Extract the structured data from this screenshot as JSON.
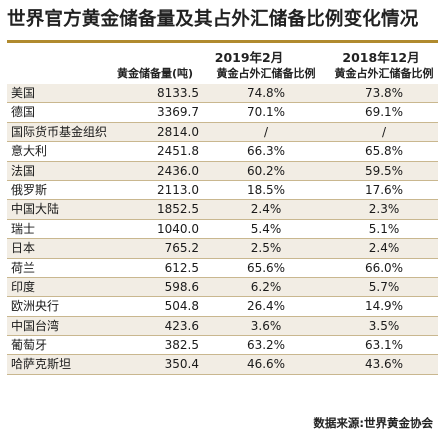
{
  "title": "世界官方黄金储备量及其占外汇储备比例变化情况",
  "periods": {
    "p2019": "2019年2月",
    "p2018": "2018年12月"
  },
  "columns": {
    "reserve": "黄金储备量(吨)",
    "pct2019": "黄金占外汇储备比例",
    "pct2018": "黄金占外汇储备比例"
  },
  "rows": [
    {
      "country": "美国",
      "reserve": "8133.5",
      "pct2019": "74.8%",
      "pct2018": "73.8%"
    },
    {
      "country": "德国",
      "reserve": "3369.7",
      "pct2019": "70.1%",
      "pct2018": "69.1%"
    },
    {
      "country": "国际货币基金组织",
      "reserve": "2814.0",
      "pct2019": "/",
      "pct2018": "/"
    },
    {
      "country": "意大利",
      "reserve": "2451.8",
      "pct2019": "66.3%",
      "pct2018": "65.8%"
    },
    {
      "country": "法国",
      "reserve": "2436.0",
      "pct2019": "60.2%",
      "pct2018": "59.5%"
    },
    {
      "country": "俄罗斯",
      "reserve": "2113.0",
      "pct2019": "18.5%",
      "pct2018": "17.6%"
    },
    {
      "country": "中国大陆",
      "reserve": "1852.5",
      "pct2019": "2.4%",
      "pct2018": "2.3%"
    },
    {
      "country": "瑞士",
      "reserve": "1040.0",
      "pct2019": "5.4%",
      "pct2018": "5.1%"
    },
    {
      "country": "日本",
      "reserve": "765.2",
      "pct2019": "2.5%",
      "pct2018": "2.4%"
    },
    {
      "country": "荷兰",
      "reserve": "612.5",
      "pct2019": "65.6%",
      "pct2018": "66.0%"
    },
    {
      "country": "印度",
      "reserve": "598.6",
      "pct2019": "6.2%",
      "pct2018": "5.7%"
    },
    {
      "country": "欧洲央行",
      "reserve": "504.8",
      "pct2019": "26.4%",
      "pct2018": "14.9%"
    },
    {
      "country": "中国台湾",
      "reserve": "423.6",
      "pct2019": "3.6%",
      "pct2018": "3.5%"
    },
    {
      "country": "葡萄牙",
      "reserve": "382.5",
      "pct2019": "63.2%",
      "pct2018": "63.1%"
    },
    {
      "country": "哈萨克斯坦",
      "reserve": "350.4",
      "pct2019": "46.6%",
      "pct2018": "43.6%"
    }
  ],
  "source": "数据来源:世界黄金协会",
  "colors": {
    "accent": "#b08a2e",
    "row_shade": "#f2ede4",
    "rule": "#c9b78f"
  }
}
